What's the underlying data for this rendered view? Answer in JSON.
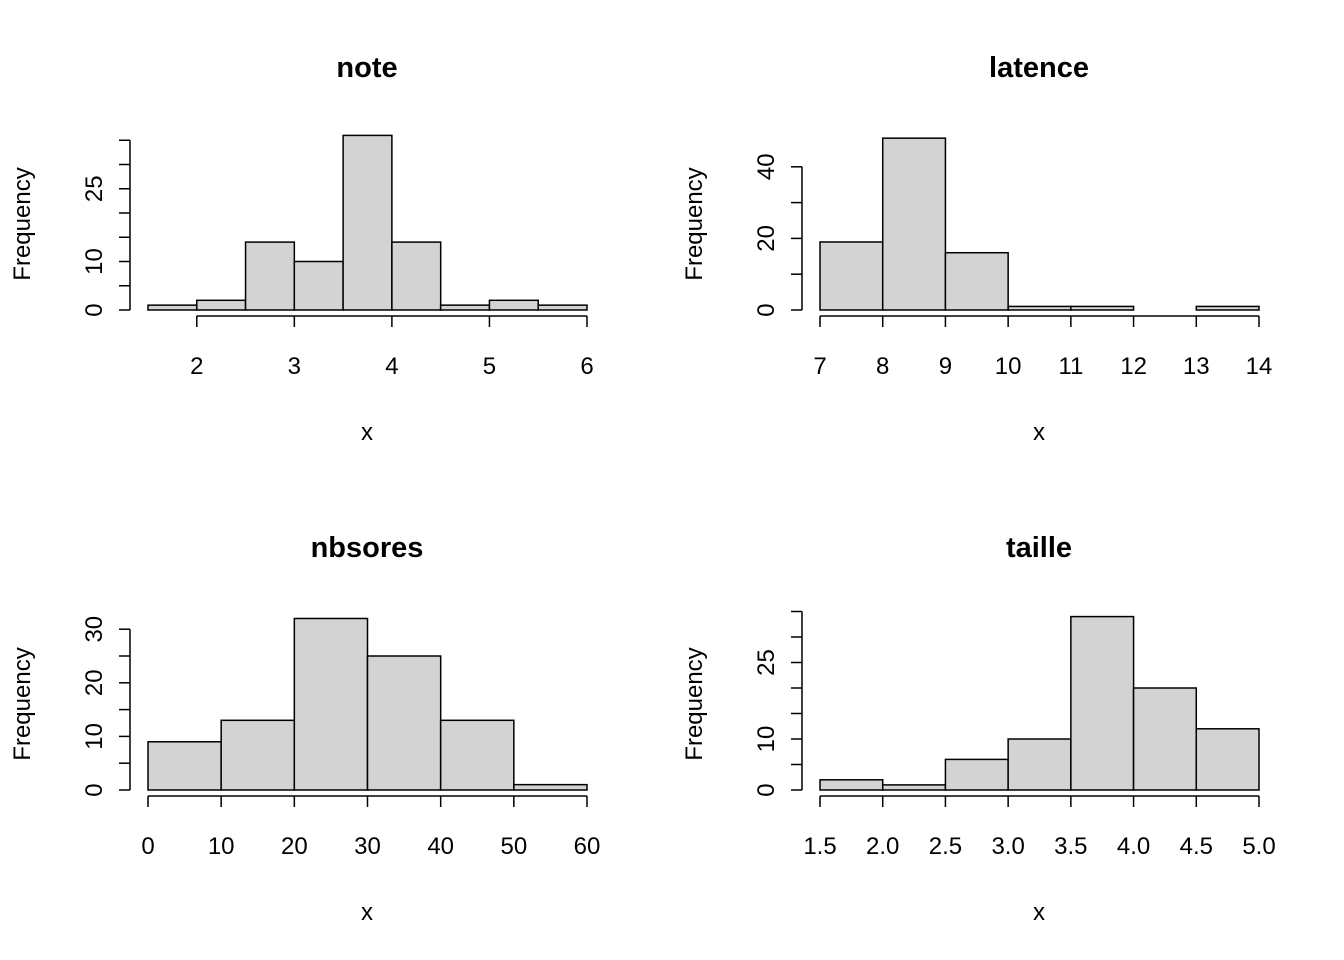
{
  "chart_data": [
    {
      "type": "bar",
      "title": "note",
      "xlabel": "x",
      "ylabel": "Frequency",
      "breaks": [
        1.5,
        2,
        2.5,
        3,
        3.5,
        4,
        4.5,
        5,
        5.5,
        6
      ],
      "counts": [
        1,
        2,
        14,
        10,
        36,
        14,
        1,
        2,
        1
      ],
      "xticks": [
        2,
        3,
        4,
        5,
        6
      ],
      "xtick_labels": [
        "2",
        "3",
        "4",
        "5",
        "6"
      ],
      "yticks": [
        0,
        5,
        10,
        15,
        20,
        25,
        30,
        35
      ],
      "ylabels": {
        "0": "0",
        "10": "10",
        "25": "25"
      }
    },
    {
      "type": "bar",
      "title": "latence",
      "xlabel": "x",
      "ylabel": "Frequency",
      "breaks": [
        7,
        8,
        9,
        10,
        11,
        12,
        13,
        14
      ],
      "counts": [
        19,
        48,
        16,
        1,
        1,
        0,
        1
      ],
      "xticks": [
        7,
        8,
        9,
        10,
        11,
        12,
        13,
        14
      ],
      "xtick_labels": [
        "7",
        "8",
        "9",
        "10",
        "11",
        "12",
        "13",
        "14"
      ],
      "yticks": [
        0,
        10,
        20,
        30,
        40
      ],
      "ylabels": {
        "0": "0",
        "20": "20",
        "40": "40"
      }
    },
    {
      "type": "bar",
      "title": "nbsores",
      "xlabel": "x",
      "ylabel": "Frequency",
      "breaks": [
        0,
        10,
        20,
        30,
        40,
        50,
        60
      ],
      "counts": [
        9,
        13,
        32,
        25,
        13,
        1
      ],
      "xticks": [
        0,
        10,
        20,
        30,
        40,
        50,
        60
      ],
      "xtick_labels": [
        "0",
        "10",
        "20",
        "30",
        "40",
        "50",
        "60"
      ],
      "yticks": [
        0,
        5,
        10,
        15,
        20,
        25,
        30
      ],
      "ylabels": {
        "0": "0",
        "10": "10",
        "20": "20",
        "30": "30"
      }
    },
    {
      "type": "bar",
      "title": "taille",
      "xlabel": "x",
      "ylabel": "Frequency",
      "breaks": [
        1.5,
        2,
        2.5,
        3,
        3.5,
        4,
        4.5,
        5
      ],
      "counts": [
        2,
        1,
        6,
        10,
        34,
        20,
        12
      ],
      "xticks": [
        1.5,
        2,
        2.5,
        3,
        3.5,
        4,
        4.5,
        5
      ],
      "xtick_labels": [
        "1.5",
        "2.0",
        "2.5",
        "3.0",
        "3.5",
        "4.0",
        "4.5",
        "5.0"
      ],
      "yticks": [
        0,
        5,
        10,
        15,
        20,
        25,
        30,
        35
      ],
      "ylabels": {
        "0": "0",
        "10": "10",
        "25": "25"
      }
    }
  ]
}
